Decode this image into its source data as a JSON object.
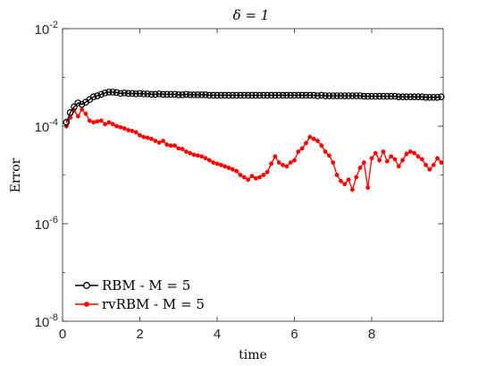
{
  "chart_data": {
    "type": "line",
    "title": "δ = 1",
    "xlabel": "time",
    "ylabel": "Error",
    "xlim": [
      0,
      9.85
    ],
    "ylim": [
      1e-08,
      0.01
    ],
    "yscale": "log",
    "grid": false,
    "legend_position": "bottom-left",
    "x_ticks": [
      {
        "value": 0,
        "label": "0"
      },
      {
        "value": 2,
        "label": "2"
      },
      {
        "value": 4,
        "label": "4"
      },
      {
        "value": 6,
        "label": "6"
      },
      {
        "value": 8,
        "label": "8"
      }
    ],
    "y_ticks": [
      {
        "value": 1e-08,
        "base": "10",
        "exp": "-8"
      },
      {
        "value": 1e-06,
        "base": "10",
        "exp": "-6"
      },
      {
        "value": 0.0001,
        "base": "10",
        "exp": "-4"
      },
      {
        "value": 0.01,
        "base": "10",
        "exp": "-2"
      }
    ],
    "series": [
      {
        "name": "RBM - M = 5",
        "color": "#000000",
        "marker": "circle-open",
        "x": [
          0.1,
          0.2,
          0.3,
          0.4,
          0.5,
          0.6,
          0.7,
          0.8,
          0.9,
          1.0,
          1.1,
          1.2,
          1.3,
          1.4,
          1.5,
          1.6,
          1.7,
          1.8,
          1.9,
          2.0,
          2.1,
          2.2,
          2.3,
          2.4,
          2.5,
          2.6,
          2.7,
          2.8,
          2.9,
          3.0,
          3.1,
          3.2,
          3.3,
          3.4,
          3.5,
          3.6,
          3.7,
          3.8,
          3.9,
          4.0,
          4.1,
          4.2,
          4.3,
          4.4,
          4.5,
          4.6,
          4.7,
          4.8,
          4.9,
          5.0,
          5.1,
          5.2,
          5.3,
          5.4,
          5.5,
          5.6,
          5.7,
          5.8,
          5.9,
          6.0,
          6.1,
          6.2,
          6.3,
          6.4,
          6.5,
          6.6,
          6.7,
          6.8,
          6.9,
          7.0,
          7.1,
          7.2,
          7.3,
          7.4,
          7.5,
          7.6,
          7.7,
          7.8,
          7.9,
          8.0,
          8.1,
          8.2,
          8.3,
          8.4,
          8.5,
          8.6,
          8.7,
          8.8,
          8.9,
          9.0,
          9.1,
          9.2,
          9.3,
          9.4,
          9.5,
          9.6,
          9.7,
          9.8
        ],
        "values": [
          0.00012,
          0.00019,
          0.00025,
          0.0003,
          0.00028,
          0.00031,
          0.00035,
          0.0004,
          0.00042,
          0.00045,
          0.00048,
          0.0005,
          0.0005,
          0.00049,
          0.00047,
          0.00048,
          0.00047,
          0.00047,
          0.00046,
          0.00047,
          0.00046,
          0.00046,
          0.00045,
          0.00045,
          0.00046,
          0.00045,
          0.00045,
          0.00045,
          0.00045,
          0.00044,
          0.00044,
          0.00045,
          0.00044,
          0.00044,
          0.00044,
          0.00044,
          0.00044,
          0.00043,
          0.00043,
          0.00043,
          0.00043,
          0.00043,
          0.00043,
          0.00043,
          0.00043,
          0.00043,
          0.00043,
          0.00043,
          0.00043,
          0.00043,
          0.00043,
          0.00043,
          0.00043,
          0.00043,
          0.00043,
          0.00043,
          0.00043,
          0.00043,
          0.00043,
          0.00043,
          0.00043,
          0.00043,
          0.00043,
          0.00043,
          0.00043,
          0.00042,
          0.00043,
          0.00042,
          0.00042,
          0.00042,
          0.00042,
          0.00042,
          0.00042,
          0.00042,
          0.00042,
          0.00042,
          0.00042,
          0.00041,
          0.00041,
          0.00041,
          0.00041,
          0.00041,
          0.00041,
          0.00041,
          0.00041,
          0.00041,
          0.0004,
          0.0004,
          0.0004,
          0.0004,
          0.0004,
          0.0004,
          0.0004,
          0.00039,
          0.00039,
          0.00039,
          0.00039,
          0.0004
        ]
      },
      {
        "name": "rvRBM - M = 5",
        "color": "#ff0000",
        "marker": "dot",
        "x": [
          0.1,
          0.2,
          0.3,
          0.4,
          0.5,
          0.6,
          0.7,
          0.8,
          0.9,
          1.0,
          1.1,
          1.2,
          1.3,
          1.4,
          1.5,
          1.6,
          1.7,
          1.8,
          1.9,
          2.0,
          2.1,
          2.2,
          2.3,
          2.4,
          2.5,
          2.6,
          2.7,
          2.8,
          2.9,
          3.0,
          3.1,
          3.2,
          3.3,
          3.4,
          3.5,
          3.6,
          3.7,
          3.8,
          3.9,
          4.0,
          4.1,
          4.2,
          4.3,
          4.4,
          4.5,
          4.6,
          4.7,
          4.8,
          4.9,
          5.0,
          5.1,
          5.2,
          5.3,
          5.4,
          5.5,
          5.6,
          5.7,
          5.8,
          5.9,
          6.0,
          6.1,
          6.2,
          6.3,
          6.4,
          6.5,
          6.6,
          6.7,
          6.8,
          6.9,
          7.0,
          7.1,
          7.2,
          7.3,
          7.4,
          7.5,
          7.6,
          7.7,
          7.8,
          7.9,
          8.0,
          8.1,
          8.2,
          8.3,
          8.4,
          8.5,
          8.6,
          8.7,
          8.8,
          8.9,
          9.0,
          9.1,
          9.2,
          9.3,
          9.4,
          9.5,
          9.6,
          9.7,
          9.8
        ],
        "values": [
          0.0001,
          0.00015,
          0.00021,
          0.00016,
          0.00022,
          0.00018,
          0.00013,
          0.00012,
          0.000125,
          0.00013,
          0.00011,
          0.00012,
          0.00011,
          0.0001,
          9.5e-05,
          9e-05,
          8.3e-05,
          8e-05,
          7.5e-05,
          6.5e-05,
          6e-05,
          5.8e-05,
          5.5e-05,
          5e-05,
          4.6e-05,
          5e-05,
          4.2e-05,
          4e-05,
          4e-05,
          3.5e-05,
          3.4e-05,
          3e-05,
          2.8e-05,
          2.6e-05,
          2.5e-05,
          2.4e-05,
          2.2e-05,
          2e-05,
          1.8e-05,
          1.7e-05,
          1.6e-05,
          1.5e-05,
          1.4e-05,
          1.3e-05,
          1.2e-05,
          1e-05,
          9e-06,
          8e-06,
          9.5e-06,
          8.5e-06,
          9e-06,
          1e-05,
          1.15e-05,
          1.7e-05,
          2.4e-05,
          1.8e-05,
          1.6e-05,
          1.5e-05,
          1.8e-05,
          2e-05,
          3e-05,
          3.5e-05,
          4.5e-05,
          6e-05,
          5.5e-05,
          5e-05,
          4e-05,
          3e-05,
          2.5e-05,
          1.8e-05,
          1e-05,
          7.5e-06,
          6.5e-06,
          8e-06,
          5e-06,
          9e-06,
          1.4e-05,
          1.8e-05,
          5.5e-06,
          2.2e-05,
          2.8e-05,
          2e-05,
          3e-05,
          1.9e-05,
          2.4e-05,
          2.1e-05,
          1.5e-05,
          2e-05,
          2.7e-05,
          3e-05,
          2.8e-05,
          2.4e-05,
          2.1e-05,
          1.6e-05,
          1.3e-05,
          1.6e-05,
          2.2e-05,
          1.8e-05
        ]
      }
    ]
  }
}
